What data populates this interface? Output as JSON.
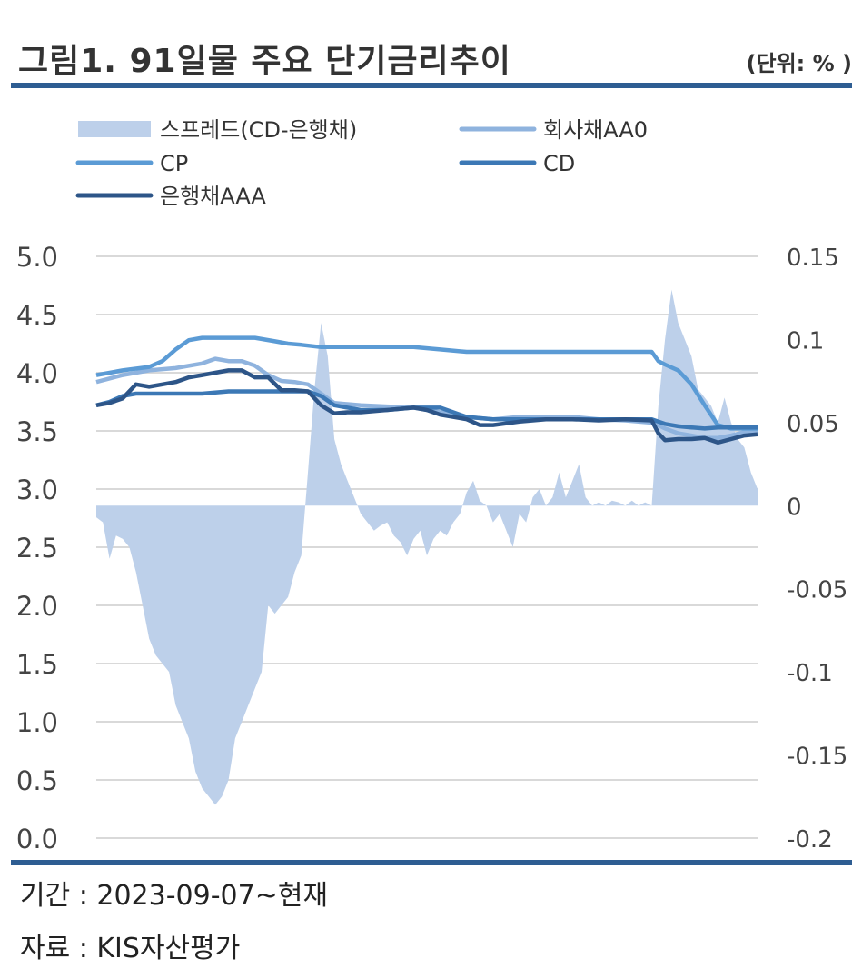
{
  "header": {
    "title": "그림1. 91일물 주요 단기금리추이",
    "unit": "(단위: % )"
  },
  "footer": {
    "period": "기간 : 2023-09-07~현재",
    "source": "자료 : KIS자산평가"
  },
  "chart_data": {
    "type": "line",
    "y_left": {
      "ticks": [
        "5.0",
        "4.5",
        "4.0",
        "3.5",
        "3.0",
        "2.5",
        "2.0",
        "1.5",
        "1.0",
        "0.5",
        "0.0"
      ],
      "range": [
        0,
        5
      ]
    },
    "y_right": {
      "ticks": [
        "0.15",
        "0.1",
        "0.05",
        "0",
        "-0.05",
        "-0.1",
        "-0.15",
        "-0.2"
      ],
      "range": [
        -0.2,
        0.15
      ]
    },
    "grid": true,
    "legend_position": "top-left",
    "index_range": [
      0,
      100
    ],
    "series": [
      {
        "name": "스프레드(CD-은행채)",
        "type": "area",
        "axis": "right",
        "color": "#bdd0ea",
        "x": [
          0,
          1,
          2,
          3,
          4,
          5,
          6,
          7,
          8,
          9,
          10,
          11,
          12,
          13,
          14,
          15,
          16,
          17,
          18,
          19,
          20,
          21,
          22,
          23,
          24,
          25,
          26,
          27,
          28,
          29,
          30,
          31,
          32,
          33,
          34,
          35,
          36,
          37,
          38,
          39,
          40,
          41,
          42,
          43,
          44,
          45,
          46,
          47,
          48,
          49,
          50,
          51,
          52,
          53,
          54,
          55,
          56,
          57,
          58,
          59,
          60,
          61,
          62,
          63,
          64,
          65,
          66,
          67,
          68,
          69,
          70,
          71,
          72,
          73,
          74,
          75,
          76,
          77,
          78,
          79,
          80,
          81,
          82,
          83,
          84,
          85,
          86,
          87,
          88,
          89,
          90,
          91,
          92,
          93,
          94,
          95,
          96,
          97,
          98,
          99,
          100
        ],
        "values": [
          -0.007,
          -0.01,
          -0.032,
          -0.018,
          -0.02,
          -0.025,
          -0.04,
          -0.06,
          -0.08,
          -0.09,
          -0.095,
          -0.1,
          -0.12,
          -0.13,
          -0.14,
          -0.16,
          -0.17,
          -0.175,
          -0.18,
          -0.175,
          -0.165,
          -0.14,
          -0.13,
          -0.12,
          -0.11,
          -0.1,
          -0.06,
          -0.065,
          -0.06,
          -0.055,
          -0.04,
          -0.03,
          0.02,
          0.07,
          0.11,
          0.09,
          0.04,
          0.025,
          0.015,
          0.005,
          -0.005,
          -0.01,
          -0.015,
          -0.012,
          -0.01,
          -0.018,
          -0.022,
          -0.03,
          -0.02,
          -0.015,
          -0.03,
          -0.02,
          -0.015,
          -0.018,
          -0.01,
          -0.005,
          0.008,
          0.015,
          0.003,
          0.0,
          -0.01,
          -0.005,
          -0.015,
          -0.025,
          -0.005,
          -0.01,
          0.005,
          0.01,
          0.0,
          0.005,
          0.02,
          0.005,
          0.015,
          0.025,
          0.005,
          0.0,
          0.002,
          0.0,
          0.003,
          0.002,
          0.0,
          0.003,
          0.0,
          0.002,
          0.0,
          0.06,
          0.1,
          0.13,
          0.11,
          0.1,
          0.09,
          0.07,
          0.065,
          0.06,
          0.05,
          0.065,
          0.05,
          0.04,
          0.035,
          0.02,
          0.01
        ]
      },
      {
        "name": "회사채AA0",
        "type": "line",
        "axis": "left",
        "color": "#8fb3de",
        "x": [
          0,
          4,
          8,
          12,
          16,
          18,
          20,
          22,
          24,
          26,
          28,
          30,
          32,
          34,
          36,
          40,
          44,
          48,
          52,
          56,
          60,
          64,
          68,
          72,
          76,
          80,
          84,
          85,
          86,
          88,
          90,
          92,
          94,
          96,
          98,
          100
        ],
        "values": [
          3.92,
          3.98,
          4.02,
          4.04,
          4.08,
          4.12,
          4.1,
          4.1,
          4.06,
          3.98,
          3.93,
          3.92,
          3.9,
          3.82,
          3.74,
          3.72,
          3.71,
          3.7,
          3.66,
          3.62,
          3.6,
          3.62,
          3.62,
          3.62,
          3.6,
          3.59,
          3.57,
          3.55,
          3.52,
          3.48,
          3.46,
          3.44,
          3.44,
          3.46,
          3.49,
          3.5
        ]
      },
      {
        "name": "CP",
        "type": "line",
        "axis": "left",
        "color": "#5b9bd5",
        "x": [
          0,
          4,
          8,
          10,
          12,
          14,
          16,
          20,
          24,
          27,
          29,
          31,
          34,
          40,
          48,
          52,
          56,
          60,
          64,
          68,
          72,
          76,
          80,
          84,
          85,
          86,
          88,
          90,
          92,
          94,
          96,
          98,
          100
        ],
        "values": [
          3.98,
          4.02,
          4.05,
          4.1,
          4.2,
          4.28,
          4.3,
          4.3,
          4.3,
          4.27,
          4.25,
          4.24,
          4.22,
          4.22,
          4.22,
          4.2,
          4.18,
          4.18,
          4.18,
          4.18,
          4.18,
          4.18,
          4.18,
          4.18,
          4.1,
          4.07,
          4.02,
          3.9,
          3.72,
          3.55,
          3.52,
          3.52,
          3.52
        ]
      },
      {
        "name": "CD",
        "type": "line",
        "axis": "left",
        "color": "#3c78b5",
        "x": [
          0,
          2,
          4,
          6,
          8,
          10,
          12,
          16,
          20,
          24,
          28,
          32,
          34,
          36,
          40,
          44,
          48,
          52,
          56,
          60,
          64,
          68,
          72,
          76,
          80,
          84,
          86,
          88,
          90,
          92,
          94,
          96,
          98,
          100
        ],
        "values": [
          3.72,
          3.75,
          3.8,
          3.82,
          3.82,
          3.82,
          3.82,
          3.82,
          3.84,
          3.84,
          3.84,
          3.84,
          3.8,
          3.72,
          3.68,
          3.68,
          3.7,
          3.7,
          3.62,
          3.6,
          3.6,
          3.6,
          3.6,
          3.6,
          3.6,
          3.6,
          3.56,
          3.54,
          3.53,
          3.52,
          3.53,
          3.53,
          3.53,
          3.53
        ]
      },
      {
        "name": "은행채AAA",
        "type": "line",
        "axis": "left",
        "color": "#2d5588",
        "x": [
          0,
          2,
          4,
          6,
          8,
          10,
          12,
          14,
          16,
          18,
          20,
          22,
          24,
          26,
          28,
          30,
          32,
          34,
          36,
          38,
          40,
          44,
          48,
          50,
          52,
          56,
          58,
          60,
          64,
          68,
          72,
          76,
          80,
          84,
          85,
          86,
          88,
          90,
          92,
          94,
          96,
          98,
          100
        ],
        "values": [
          3.72,
          3.74,
          3.78,
          3.9,
          3.88,
          3.9,
          3.92,
          3.96,
          3.98,
          4.0,
          4.02,
          4.02,
          3.96,
          3.96,
          3.85,
          3.85,
          3.84,
          3.72,
          3.65,
          3.66,
          3.66,
          3.68,
          3.7,
          3.68,
          3.64,
          3.6,
          3.55,
          3.55,
          3.58,
          3.6,
          3.6,
          3.59,
          3.6,
          3.59,
          3.48,
          3.42,
          3.43,
          3.43,
          3.44,
          3.4,
          3.43,
          3.46,
          3.47
        ]
      }
    ]
  }
}
